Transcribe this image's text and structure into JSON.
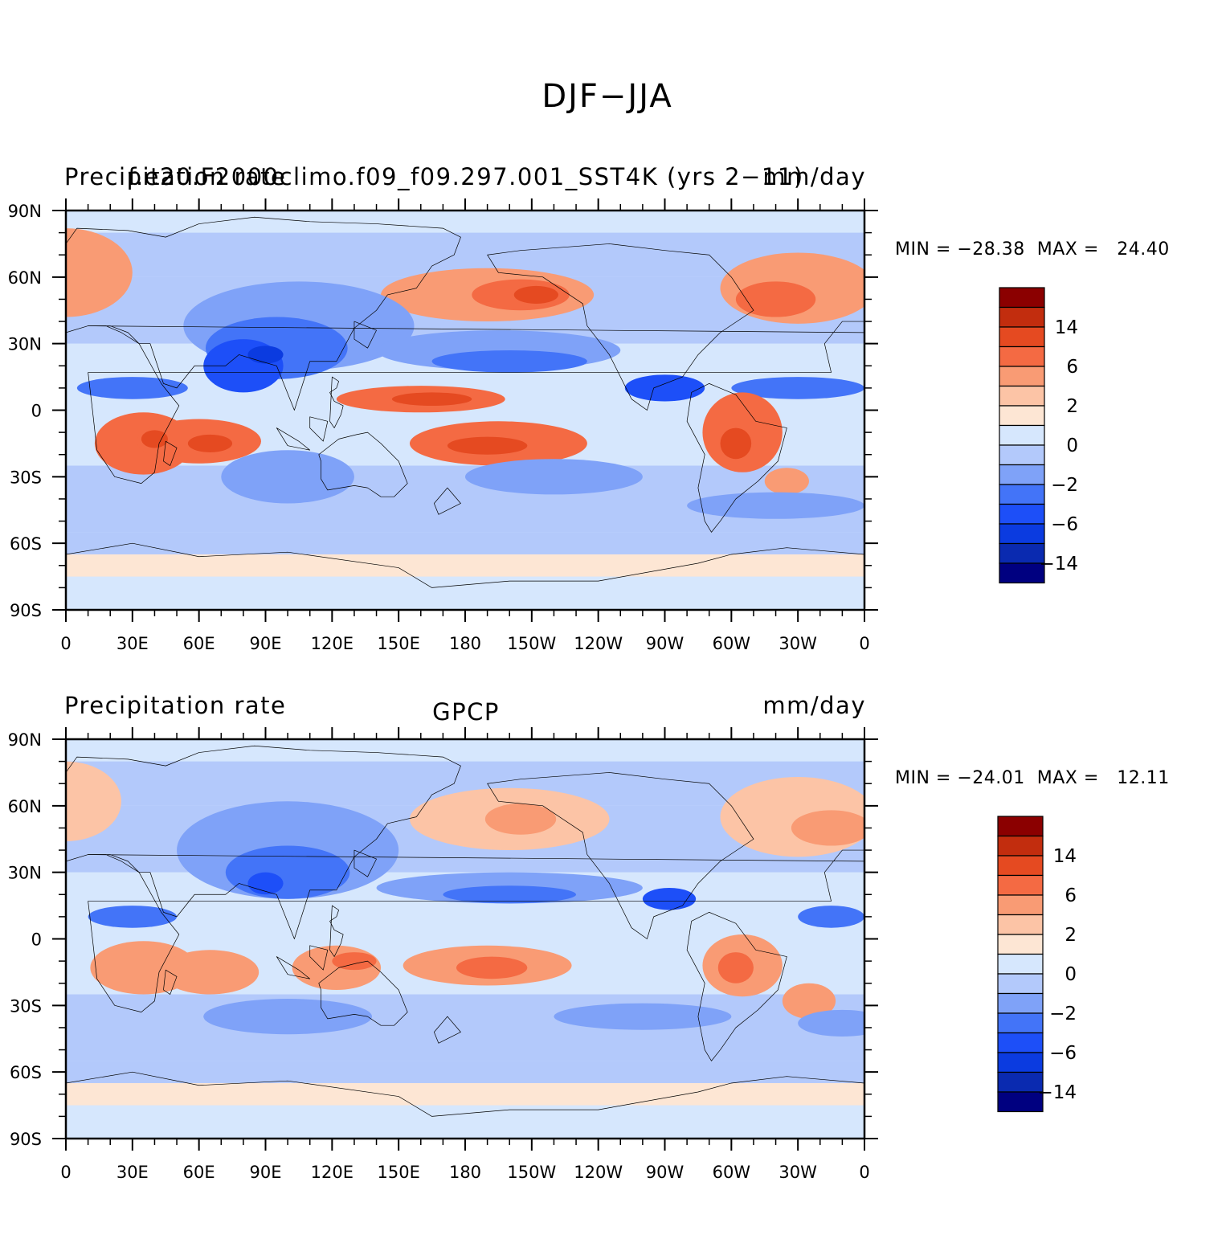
{
  "title": "DJF−JJA",
  "colorscale": {
    "colors": [
      "#000080",
      "#0a2ab0",
      "#0b3be0",
      "#1d4ff8",
      "#4374f8",
      "#7fa2f8",
      "#b3c9fb",
      "#d6e7fd",
      "#fde6d4",
      "#fcc4a6",
      "#f99b74",
      "#f46a43",
      "#e54a21",
      "#c22d0e",
      "#8b0000"
    ]
  },
  "axes": {
    "x_ticks": [
      "0",
      "30E",
      "60E",
      "90E",
      "120E",
      "150E",
      "180",
      "150W",
      "120W",
      "90W",
      "60W",
      "30W",
      "0"
    ],
    "y_ticks": [
      "90N",
      "60N",
      "30N",
      "0",
      "30S",
      "60S",
      "90S"
    ]
  },
  "colorbar_labels": [
    "14",
    "6",
    "2",
    "0",
    "−2",
    "−6",
    "−14"
  ],
  "panels": [
    {
      "id": "model",
      "left_title": "Precipitation rate",
      "center_title": "f.e20.F2000climo.f09_f09.297.001_SST4K (yrs 2−11)",
      "right_title": "mm/day",
      "stats_text": "MIN = −28.38  MAX =   24.40"
    },
    {
      "id": "gpcp",
      "left_title": "Precipitation rate",
      "center_title": "GPCP",
      "right_title": "mm/day",
      "stats_text": "MIN = −24.01  MAX =   12.11"
    }
  ],
  "chart_data": {
    "type": "heatmap",
    "title": "DJF−JJA",
    "units": "mm/day",
    "x_range": [
      "0",
      "0"
    ],
    "y_range": [
      "90S",
      "90N"
    ],
    "contour_levels": [
      -14,
      -10,
      -6,
      -4,
      -2,
      -1,
      0,
      1,
      2,
      4,
      6,
      10,
      14,
      18
    ],
    "panels": [
      {
        "name": "f.e20.F2000climo.f09_f09.297.001_SST4K (yrs 2−11)",
        "min": -28.38,
        "max": 24.4
      },
      {
        "name": "GPCP",
        "min": -24.01,
        "max": 12.11
      }
    ]
  }
}
